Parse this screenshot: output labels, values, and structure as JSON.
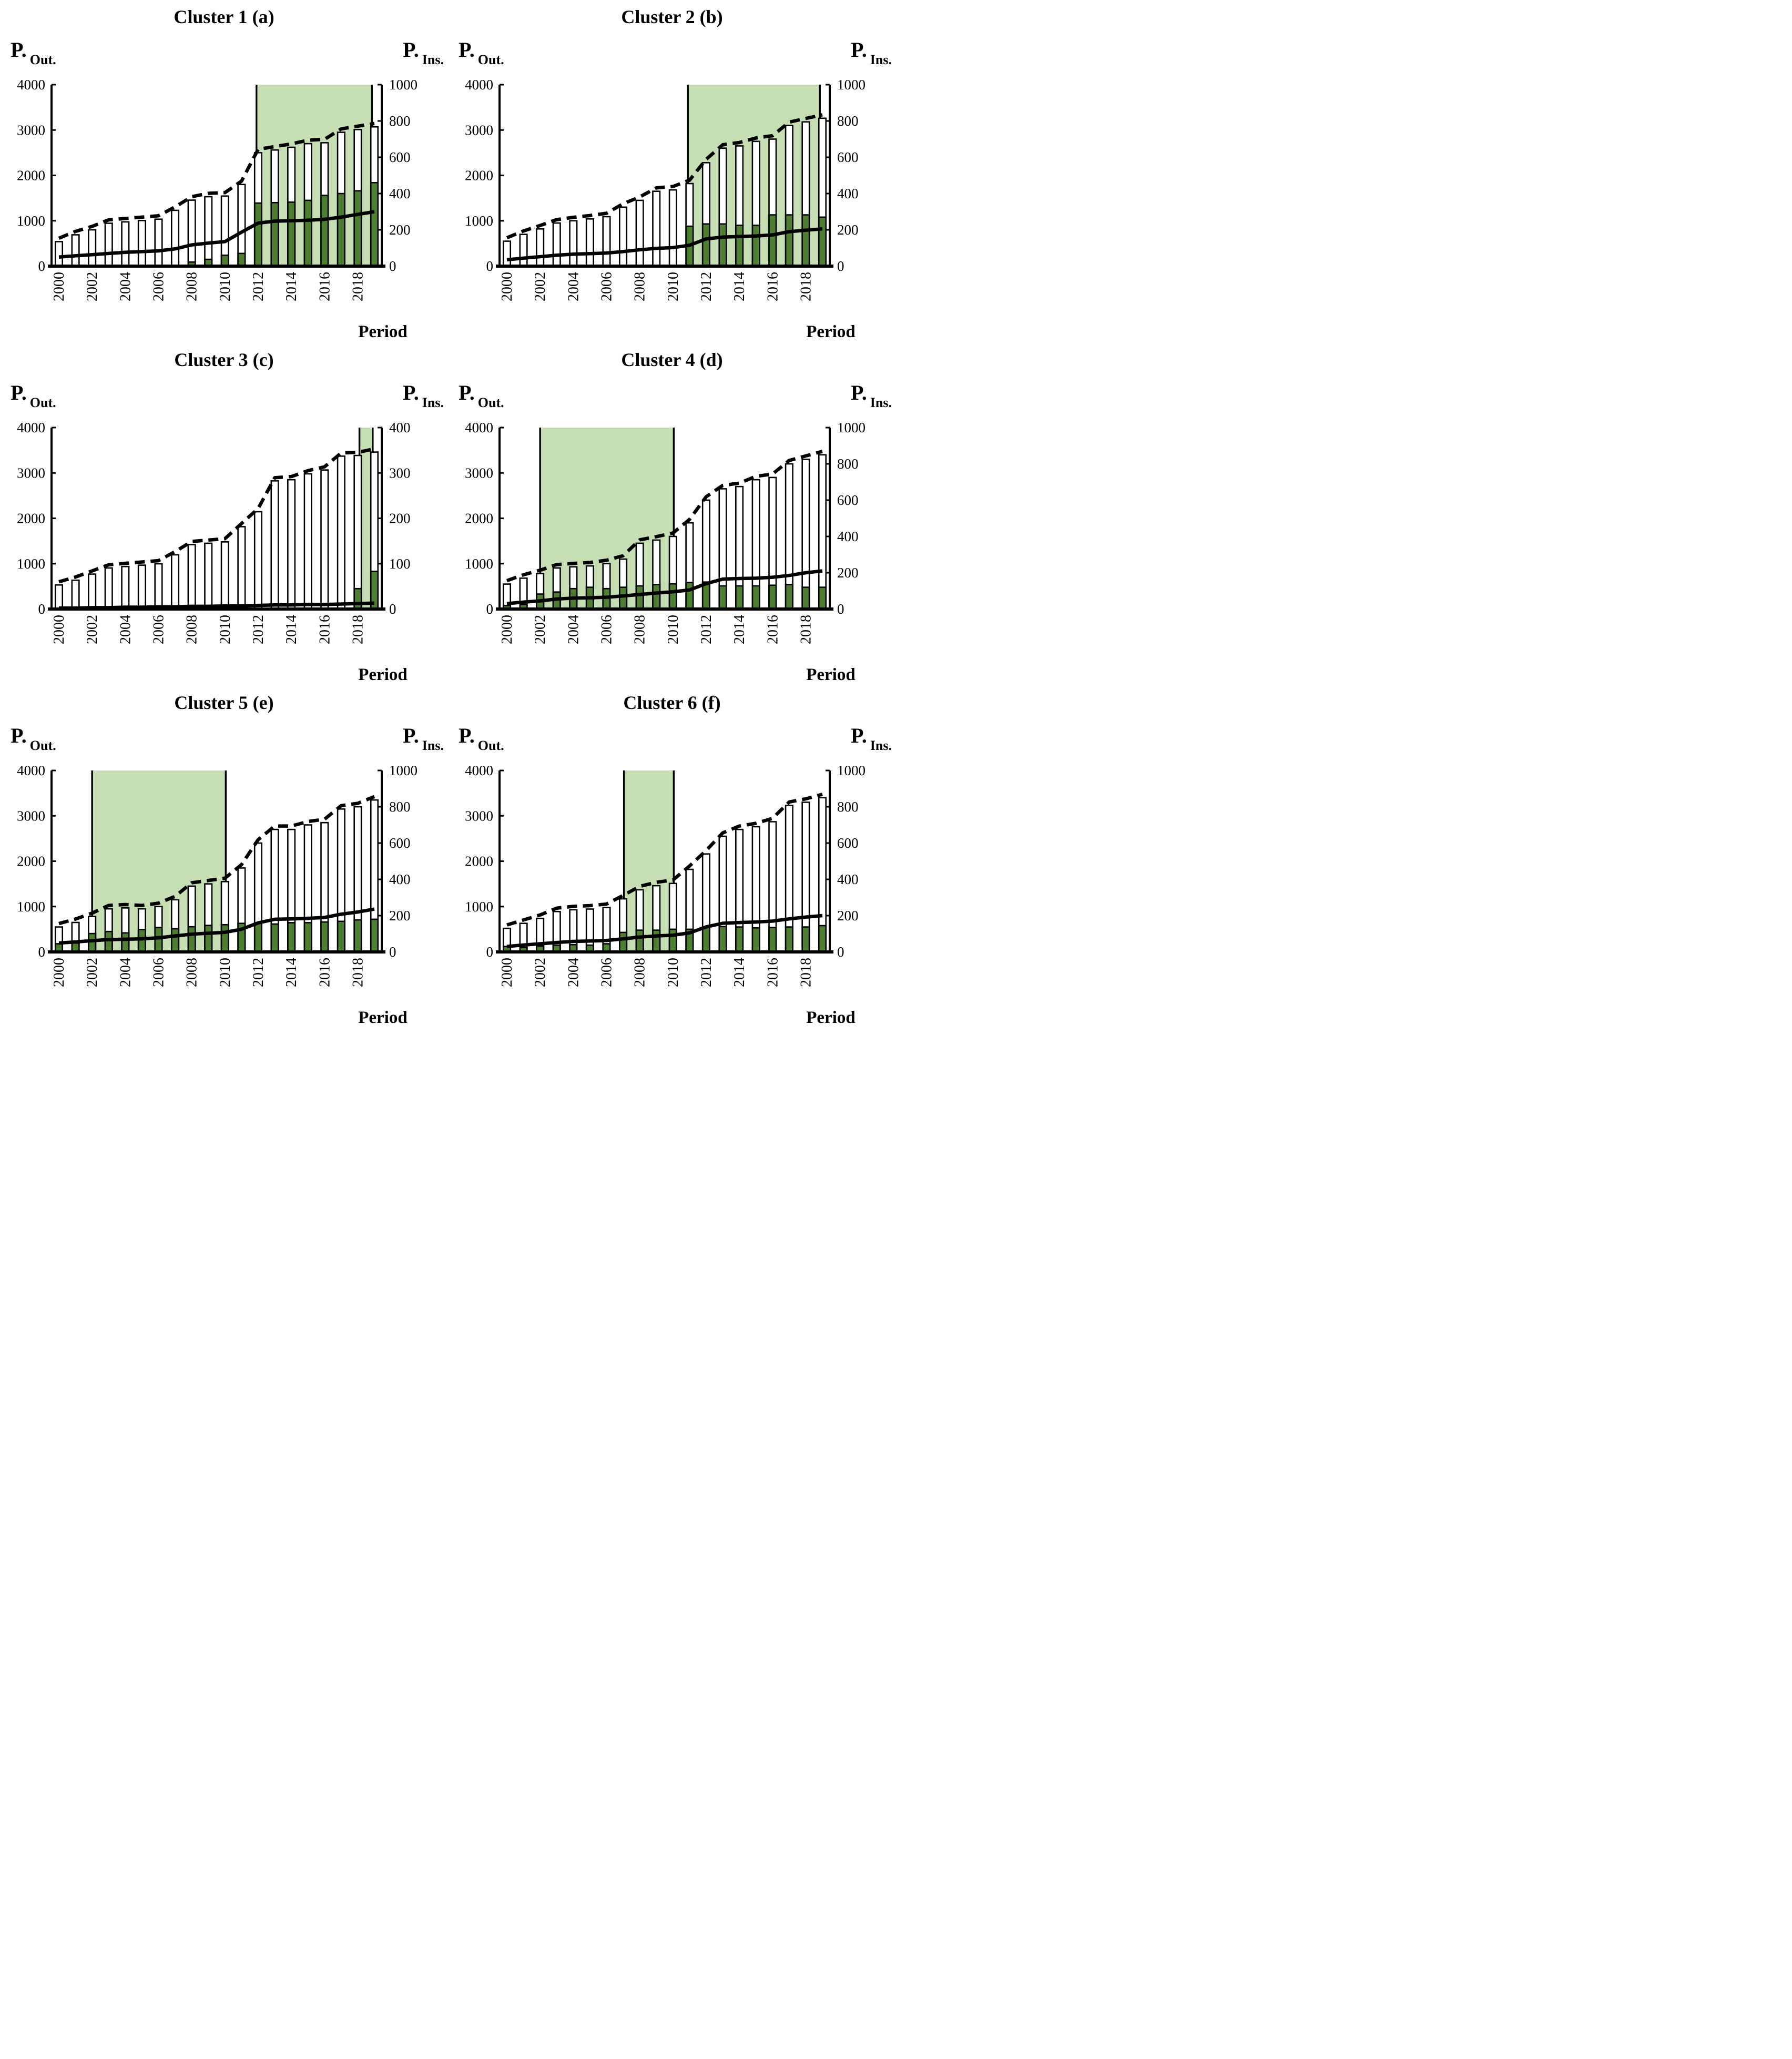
{
  "figure": {
    "kind": "six-panel dual-axis bar and line chart",
    "x_label": "Period",
    "years": [
      2000,
      2001,
      2002,
      2003,
      2004,
      2005,
      2006,
      2007,
      2008,
      2009,
      2010,
      2011,
      2012,
      2013,
      2014,
      2015,
      2016,
      2017,
      2018,
      2019
    ],
    "x_tick_labels": [
      "2000",
      "2002",
      "2004",
      "2006",
      "2008",
      "2010",
      "2012",
      "2014",
      "2016",
      "2018"
    ]
  },
  "colors": {
    "band": "#c5deb4",
    "bar_inside": "#4e7e31",
    "bar_outside": "#ffffff",
    "line": "#000000",
    "axis": "#000000"
  },
  "chart_data": [
    {
      "panel_id": "a",
      "type": "bar",
      "title": "Cluster 1 (a)",
      "left_axis": {
        "label": "P.",
        "sublabel": "Out.",
        "max": 4000,
        "ticks": [
          0,
          1000,
          2000,
          3000,
          4000
        ]
      },
      "right_axis": {
        "label": "P.",
        "sublabel": "Ins.",
        "max": 1000,
        "ticks": [
          0,
          200,
          400,
          600,
          800,
          1000
        ]
      },
      "x_axis": {
        "label": "Period",
        "tick_labels": [
          "2000",
          "2002",
          "2004",
          "2006",
          "2008",
          "2010",
          "2012",
          "2014",
          "2016",
          "2018"
        ]
      },
      "highlight_band": {
        "from_year": 2011.9,
        "to_year": 2018.85
      },
      "series": {
        "outside_pubs_bars_left_axis": [
          540,
          690,
          800,
          945,
          975,
          1005,
          1035,
          1230,
          1455,
          1530,
          1545,
          1800,
          2500,
          2560,
          2620,
          2700,
          2720,
          2950,
          3010,
          3070
        ],
        "inside_pubs_bars_left_axis": [
          0,
          0,
          0,
          0,
          0,
          0,
          0,
          0,
          90,
          150,
          240,
          280,
          1390,
          1400,
          1410,
          1450,
          1560,
          1600,
          1660,
          1840
        ],
        "dashed_line_left_axis": [
          615,
          765,
          875,
          1020,
          1050,
          1080,
          1110,
          1305,
          1530,
          1605,
          1620,
          1875,
          2575,
          2635,
          2695,
          2775,
          2795,
          3025,
          3085,
          3145
        ],
        "solid_line_right_axis": [
          50,
          57,
          63,
          70,
          76,
          80,
          84,
          95,
          117,
          127,
          135,
          187,
          237,
          248,
          250,
          253,
          258,
          270,
          285,
          300
        ]
      }
    },
    {
      "panel_id": "b",
      "type": "bar",
      "title": "Cluster 2 (b)",
      "left_axis": {
        "label": "P.",
        "sublabel": "Out.",
        "max": 4000,
        "ticks": [
          0,
          1000,
          2000,
          3000,
          4000
        ]
      },
      "right_axis": {
        "label": "P.",
        "sublabel": "Ins.",
        "max": 1000,
        "ticks": [
          0,
          200,
          400,
          600,
          800,
          1000
        ]
      },
      "x_axis": {
        "label": "Period",
        "tick_labels": [
          "2000",
          "2002",
          "2004",
          "2006",
          "2008",
          "2010",
          "2012",
          "2014",
          "2016",
          "2018"
        ]
      },
      "highlight_band": {
        "from_year": 2010.9,
        "to_year": 2018.85
      },
      "series": {
        "outside_pubs_bars_left_axis": [
          550,
          700,
          820,
          950,
          1000,
          1040,
          1090,
          1300,
          1450,
          1650,
          1680,
          1820,
          2280,
          2600,
          2650,
          2750,
          2800,
          3100,
          3180,
          3260
        ],
        "inside_pubs_bars_left_axis": [
          0,
          0,
          0,
          0,
          0,
          0,
          0,
          0,
          0,
          0,
          0,
          880,
          930,
          930,
          900,
          900,
          1130,
          1130,
          1130,
          1080
        ],
        "dashed_line_left_axis": [
          625,
          775,
          895,
          1025,
          1075,
          1115,
          1165,
          1375,
          1525,
          1725,
          1755,
          1895,
          2355,
          2675,
          2725,
          2825,
          2875,
          3175,
          3255,
          3335
        ],
        "solid_line_right_axis": [
          35,
          44,
          52,
          60,
          66,
          69,
          72,
          80,
          90,
          98,
          102,
          115,
          150,
          160,
          163,
          166,
          172,
          190,
          198,
          205
        ]
      }
    },
    {
      "panel_id": "c",
      "type": "bar",
      "title": "Cluster 3 (c)",
      "left_axis": {
        "label": "P.",
        "sublabel": "Out.",
        "max": 4000,
        "ticks": [
          0,
          1000,
          2000,
          3000,
          4000
        ]
      },
      "right_axis": {
        "label": "P.",
        "sublabel": "Ins.",
        "max": 400,
        "ticks": [
          0,
          100,
          200,
          300,
          400
        ]
      },
      "x_axis": {
        "label": "Period",
        "tick_labels": [
          "2000",
          "2002",
          "2004",
          "2006",
          "2008",
          "2010",
          "2012",
          "2014",
          "2016",
          "2018"
        ]
      },
      "highlight_band": {
        "from_year": 2018.1,
        "to_year": 2018.9
      },
      "series": {
        "outside_pubs_bars_left_axis": [
          530,
          635,
          770,
          905,
          937,
          967,
          997,
          1195,
          1420,
          1450,
          1480,
          1815,
          2145,
          2825,
          2850,
          2980,
          3065,
          3370,
          3385,
          3460
        ],
        "inside_pubs_bars_left_axis": [
          0,
          0,
          0,
          0,
          0,
          0,
          0,
          0,
          0,
          0,
          0,
          0,
          0,
          0,
          0,
          0,
          0,
          0,
          450,
          830
        ],
        "dashed_line_left_axis": [
          600,
          705,
          840,
          975,
          1007,
          1037,
          1067,
          1265,
          1490,
          1520,
          1550,
          1885,
          2215,
          2895,
          2920,
          3050,
          3135,
          3440,
          3455,
          3530
        ],
        "solid_line_right_axis": [
          2,
          2,
          3,
          3,
          4,
          4,
          5,
          5,
          6,
          6,
          7,
          7,
          8,
          9,
          9,
          10,
          10,
          11,
          12,
          13
        ]
      }
    },
    {
      "panel_id": "d",
      "type": "bar",
      "title": "Cluster 4 (d)",
      "left_axis": {
        "label": "P.",
        "sublabel": "Out.",
        "max": 4000,
        "ticks": [
          0,
          1000,
          2000,
          3000,
          4000
        ]
      },
      "right_axis": {
        "label": "P.",
        "sublabel": "Ins.",
        "max": 1000,
        "ticks": [
          0,
          200,
          400,
          600,
          800,
          1000
        ]
      },
      "x_axis": {
        "label": "Period",
        "tick_labels": [
          "2000",
          "2002",
          "2004",
          "2006",
          "2008",
          "2010",
          "2012",
          "2014",
          "2016",
          "2018"
        ]
      },
      "highlight_band": {
        "from_year": 2002.0,
        "to_year": 2010.05
      },
      "series": {
        "outside_pubs_bars_left_axis": [
          550,
          680,
          780,
          905,
          930,
          950,
          1000,
          1100,
          1450,
          1520,
          1600,
          1900,
          2400,
          2650,
          2700,
          2850,
          2900,
          3200,
          3300,
          3400
        ],
        "inside_pubs_bars_left_axis": [
          75,
          100,
          330,
          375,
          450,
          480,
          450,
          480,
          510,
          540,
          555,
          585,
          595,
          510,
          510,
          510,
          525,
          540,
          480,
          480
        ],
        "dashed_line_left_axis": [
          625,
          755,
          855,
          980,
          1005,
          1025,
          1075,
          1175,
          1525,
          1595,
          1675,
          1975,
          2475,
          2725,
          2775,
          2925,
          2975,
          3275,
          3375,
          3475
        ],
        "solid_line_right_axis": [
          30,
          38,
          45,
          55,
          60,
          62,
          65,
          72,
          80,
          88,
          95,
          105,
          140,
          165,
          168,
          170,
          175,
          185,
          200,
          210
        ]
      }
    },
    {
      "panel_id": "e",
      "type": "bar",
      "title": "Cluster 5 (e)",
      "left_axis": {
        "label": "P.",
        "sublabel": "Out.",
        "max": 4000,
        "ticks": [
          0,
          1000,
          2000,
          3000,
          4000
        ]
      },
      "right_axis": {
        "label": "P.",
        "sublabel": "Ins.",
        "max": 1000,
        "ticks": [
          0,
          200,
          400,
          600,
          800,
          1000
        ]
      },
      "x_axis": {
        "label": "Period",
        "tick_labels": [
          "2000",
          "2002",
          "2004",
          "2006",
          "2008",
          "2010",
          "2012",
          "2014",
          "2016",
          "2018"
        ]
      },
      "highlight_band": {
        "from_year": 2002.0,
        "to_year": 2010.05
      },
      "series": {
        "outside_pubs_bars_left_axis": [
          550,
          650,
          780,
          950,
          970,
          950,
          1000,
          1150,
          1450,
          1500,
          1550,
          1850,
          2400,
          2700,
          2700,
          2800,
          2850,
          3150,
          3200,
          3350
        ],
        "inside_pubs_bars_left_axis": [
          180,
          195,
          405,
          450,
          420,
          495,
          540,
          510,
          555,
          585,
          600,
          630,
          645,
          615,
          645,
          645,
          660,
          675,
          705,
          720
        ],
        "dashed_line_left_axis": [
          625,
          725,
          855,
          1025,
          1045,
          1025,
          1075,
          1225,
          1525,
          1575,
          1625,
          1925,
          2475,
          2775,
          2775,
          2875,
          2925,
          3225,
          3275,
          3425
        ],
        "solid_line_right_axis": [
          49,
          55,
          62,
          68,
          70,
          72,
          78,
          88,
          98,
          103,
          108,
          125,
          160,
          180,
          182,
          185,
          190,
          208,
          220,
          236
        ]
      }
    },
    {
      "panel_id": "f",
      "type": "bar",
      "title": "Cluster 6 (f)",
      "left_axis": {
        "label": "P.",
        "sublabel": "Out.",
        "max": 4000,
        "ticks": [
          0,
          1000,
          2000,
          3000,
          4000
        ]
      },
      "right_axis": {
        "label": "P.",
        "sublabel": "Ins.",
        "max": 1000,
        "ticks": [
          0,
          200,
          400,
          600,
          800,
          1000
        ]
      },
      "x_axis": {
        "label": "Period",
        "tick_labels": [
          "2000",
          "2002",
          "2004",
          "2006",
          "2008",
          "2010",
          "2012",
          "2014",
          "2016",
          "2018"
        ]
      },
      "highlight_band": {
        "from_year": 2007.05,
        "to_year": 2010.05
      },
      "series": {
        "outside_pubs_bars_left_axis": [
          520,
          630,
          740,
          890,
          930,
          945,
          980,
          1170,
          1370,
          1460,
          1510,
          1820,
          2160,
          2550,
          2700,
          2760,
          2870,
          3230,
          3300,
          3400
        ],
        "inside_pubs_bars_left_axis": [
          120,
          100,
          130,
          150,
          160,
          150,
          180,
          430,
          480,
          480,
          500,
          500,
          550,
          560,
          550,
          530,
          540,
          550,
          550,
          580
        ],
        "dashed_line_left_axis": [
          595,
          705,
          815,
          965,
          1005,
          1020,
          1055,
          1245,
          1445,
          1535,
          1585,
          1895,
          2235,
          2625,
          2775,
          2835,
          2945,
          3305,
          3375,
          3475
        ],
        "solid_line_right_axis": [
          30,
          38,
          45,
          52,
          58,
          60,
          63,
          72,
          82,
          88,
          92,
          105,
          138,
          158,
          162,
          165,
          170,
          182,
          192,
          200
        ]
      }
    }
  ]
}
